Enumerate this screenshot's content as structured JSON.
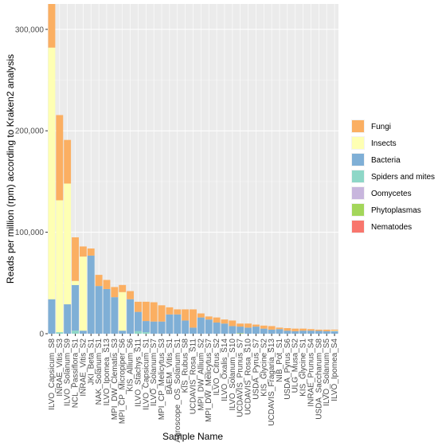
{
  "chart_data": {
    "type": "bar",
    "stacked": true,
    "xlabel": "Sample Name",
    "ylabel": "Reads per million (rpm) according to Kraken2 analysis",
    "ylim": [
      0,
      325000
    ],
    "yticks": [
      0,
      100000,
      200000,
      300000
    ],
    "ytick_labels": [
      "0",
      "100,000",
      "200,000",
      "300,000"
    ],
    "grid": true,
    "legend_position": "right",
    "categories": [
      "ILVO_Capsicum_S8",
      "INRAE_Vitis_S3",
      "ILVO_Solanum_S9",
      "NCL_Passiflora_S1",
      "INRAE_Vitis_S2",
      "JKI_Beta_S1",
      "NAK_Solanum_S1",
      "ILVO_Ipomea_S13",
      "MPI_DW_Clematis_S3",
      "MPI_CP_Micropiper_S6",
      "KIS_Allium_S6",
      "ILVO_Stachys_S11",
      "ILVO_Capsicum_S1",
      "ILVO_Solanum_S7",
      "MPI_CP_Melicytus_S3",
      "BAEM_Vitis_S1",
      "Agroscope_OS_Solanum_S1",
      "KIS_Rubus_S8",
      "UCDAVIS_Rosa_S11",
      "MPI_DW_Allium_S2",
      "MPI_DW_Melicytus_S7",
      "ILVO_Citrus_S2",
      "ILVO_Oxalis_S14",
      "ILVO_Solanum_S10",
      "UCDAVIS_Prunus_S7",
      "UCDAVIS_Rosa_S10",
      "USDA_Pyrus_S7",
      "KIS_Glycine_S2",
      "UCDAVIS_Fragaria_S13",
      "NIB_Pot_S1",
      "USDA_Pyrus_S6",
      "ULG_Musa_S2",
      "KIS_Glycine_S1",
      "INRAE_Prunus_S4",
      "USDA_Saccharum_S8",
      "ILVO_Solanum_S5",
      "ILVO_Ipomea_S4"
    ],
    "series": [
      {
        "name": "Nematodes",
        "color": "#F8766D",
        "values": [
          0,
          0,
          0,
          0,
          0,
          0,
          0,
          0,
          0,
          0,
          0,
          0,
          0,
          0,
          0,
          0,
          0,
          0,
          0,
          0,
          0,
          0,
          0,
          0,
          0,
          0,
          0,
          0,
          0,
          0,
          0,
          0,
          0,
          0,
          0,
          0,
          0
        ]
      },
      {
        "name": "Phytoplasmas",
        "color": "#A3D65A",
        "values": [
          0,
          0,
          0,
          0,
          0,
          0,
          0,
          0,
          0,
          0,
          0,
          0,
          0,
          0,
          0,
          0,
          0,
          0,
          0,
          0,
          0,
          0,
          0,
          0,
          500,
          0,
          0,
          0,
          0,
          0,
          0,
          0,
          0,
          0,
          0,
          0,
          0
        ]
      },
      {
        "name": "Oomycetes",
        "color": "#C8B6DD",
        "values": [
          0,
          0,
          0,
          0,
          0,
          0,
          0,
          0,
          0,
          0,
          0,
          0,
          0,
          0,
          0,
          0,
          0,
          0,
          0,
          0,
          0,
          0,
          0,
          0,
          0,
          0,
          0,
          0,
          0,
          0,
          0,
          0,
          0,
          0,
          0,
          0,
          0
        ]
      },
      {
        "name": "Spiders and mites",
        "color": "#8ED7C7",
        "values": [
          0,
          1500,
          0,
          3000,
          0,
          0,
          0,
          0,
          0,
          0,
          0,
          2500,
          1500,
          0,
          0,
          0,
          0,
          0,
          0,
          0,
          0,
          0,
          0,
          0,
          0,
          0,
          0,
          0,
          0,
          0,
          0,
          0,
          0,
          0,
          0,
          0,
          0
        ]
      },
      {
        "name": "Bacteria",
        "color": "#7FAFD6",
        "values": [
          34000,
          0,
          29000,
          45000,
          3000,
          77000,
          47000,
          44000,
          36000,
          3000,
          34000,
          19000,
          11000,
          12000,
          12000,
          19000,
          19000,
          13000,
          6000,
          16000,
          14000,
          11000,
          10000,
          7500,
          6500,
          6000,
          7000,
          5000,
          4000,
          4500,
          3000,
          2500,
          3000,
          3000,
          2800,
          2500,
          2500
        ]
      },
      {
        "name": "Insects",
        "color": "#FEFFB3",
        "values": [
          248000,
          130000,
          119000,
          4000,
          73000,
          0,
          0,
          0,
          0,
          38000,
          0,
          0,
          0,
          0,
          0,
          0,
          0,
          0,
          0,
          0,
          0,
          0,
          0,
          0,
          0,
          0,
          0,
          0,
          0,
          0,
          0,
          0,
          0,
          0,
          0,
          0,
          500
        ]
      },
      {
        "name": "Fungi",
        "color": "#FBAF62",
        "values": [
          43000,
          84000,
          43000,
          43000,
          10000,
          7000,
          11000,
          9000,
          10000,
          7000,
          8000,
          10000,
          19000,
          19000,
          16000,
          7000,
          5000,
          11000,
          18000,
          4000,
          3000,
          5000,
          4000,
          5500,
          3000,
          4000,
          2000,
          3000,
          3500,
          1500,
          2500,
          2500,
          2000,
          1500,
          1200,
          1500,
          1000
        ]
      }
    ]
  },
  "legend": [
    {
      "label": "Fungi",
      "color": "#FBAF62"
    },
    {
      "label": "Insects",
      "color": "#FEFFB3"
    },
    {
      "label": "Bacteria",
      "color": "#7FAFD6"
    },
    {
      "label": "Spiders and mites",
      "color": "#8ED7C7"
    },
    {
      "label": "Oomycetes",
      "color": "#C8B6DD"
    },
    {
      "label": "Phytoplasmas",
      "color": "#A3D65A"
    },
    {
      "label": "Nematodes",
      "color": "#F8766D"
    }
  ],
  "colors": {
    "panel_background": "#EBEBEB",
    "grid_major": "#FFFFFF",
    "grid_minor": "#F5F5F5",
    "tick_text": "#4D4D4D"
  }
}
